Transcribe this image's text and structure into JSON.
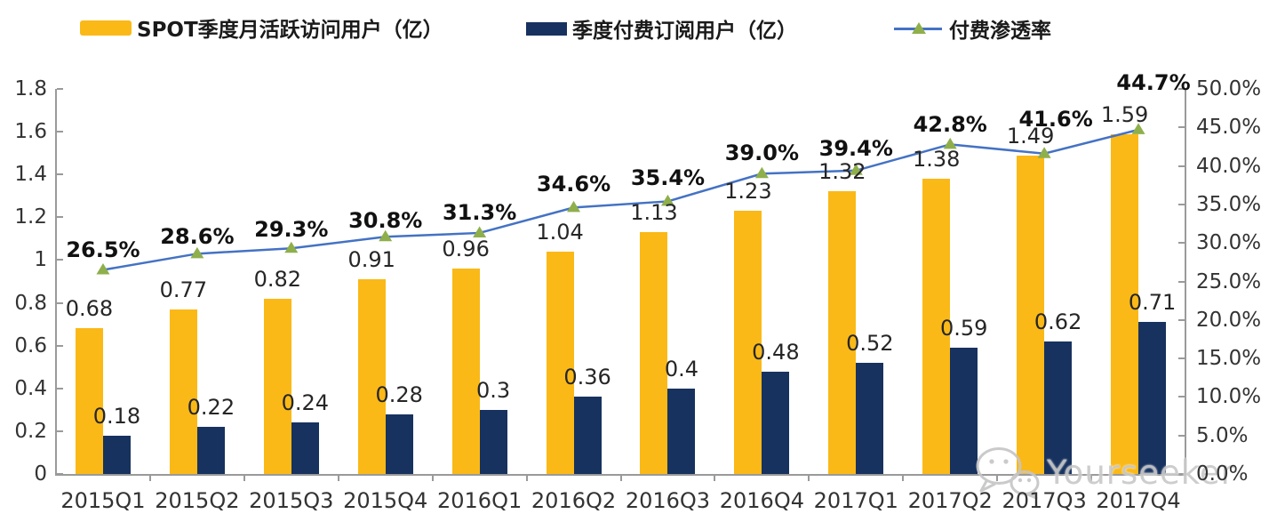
{
  "legend": [
    {
      "label": "SPOT季度月活跃访问用户（亿）",
      "type": "bar",
      "color": "#FBB917"
    },
    {
      "label": "季度付费订阅用户（亿）",
      "type": "bar",
      "color": "#17325F"
    },
    {
      "label": "付费渗透率",
      "type": "line",
      "color": "#4472C4",
      "marker_color": "#8FAF4B"
    }
  ],
  "chart_data": {
    "type": "bar+line combo",
    "categories": [
      "2015Q1",
      "2015Q2",
      "2015Q3",
      "2015Q4",
      "2016Q1",
      "2016Q2",
      "2016Q3",
      "2016Q4",
      "2017Q1",
      "2017Q2",
      "2017Q3",
      "2017Q4"
    ],
    "series": [
      {
        "name": "SPOT季度月活跃访问用户（亿）",
        "type": "bar",
        "axis": "left",
        "color": "#FBB917",
        "values": [
          0.68,
          0.77,
          0.82,
          0.91,
          0.96,
          1.04,
          1.13,
          1.23,
          1.32,
          1.38,
          1.49,
          1.59
        ],
        "labels": [
          "0.68",
          "0.77",
          "0.82",
          "0.91",
          "0.96",
          "1.04",
          "1.13",
          "1.23",
          "1.32",
          "1.38",
          "1.49",
          "1.59"
        ]
      },
      {
        "name": "季度付费订阅用户（亿）",
        "type": "bar",
        "axis": "left",
        "color": "#17325F",
        "values": [
          0.18,
          0.22,
          0.24,
          0.28,
          0.3,
          0.36,
          0.4,
          0.48,
          0.52,
          0.59,
          0.62,
          0.71
        ],
        "labels": [
          "0.18",
          "0.22",
          "0.24",
          "0.28",
          "0.3",
          "0.36",
          "0.4",
          "0.48",
          "0.52",
          "0.59",
          "0.62",
          "0.71"
        ]
      },
      {
        "name": "付费渗透率",
        "type": "line",
        "axis": "right",
        "color": "#4472C4",
        "marker": "triangle",
        "marker_color": "#8FAF4B",
        "values": [
          26.5,
          28.6,
          29.3,
          30.8,
          31.3,
          34.6,
          35.4,
          39.0,
          39.4,
          42.8,
          41.6,
          44.7
        ],
        "labels": [
          "26.5%",
          "28.6%",
          "29.3%",
          "30.8%",
          "31.3%",
          "34.6%",
          "35.4%",
          "39.0%",
          "39.4%",
          "42.8%",
          "41.6%",
          "44.7%"
        ]
      }
    ],
    "left_axis": {
      "min": 0,
      "max": 1.8,
      "ticks": [
        "1.8",
        "1.6",
        "1.4",
        "1.2",
        "1",
        "0.8",
        "0.6",
        "0.4",
        "0.2",
        "0"
      ]
    },
    "right_axis": {
      "min": 0,
      "max": 50,
      "ticks": [
        "50.0%",
        "45.0%",
        "40.0%",
        "35.0%",
        "30.0%",
        "25.0%",
        "20.0%",
        "15.0%",
        "10.0%",
        "5.0%",
        "0.0%"
      ]
    },
    "grid": false,
    "legend_position": "top"
  },
  "watermark": {
    "text": "Yourseeker",
    "icon": "wechat-icon"
  }
}
